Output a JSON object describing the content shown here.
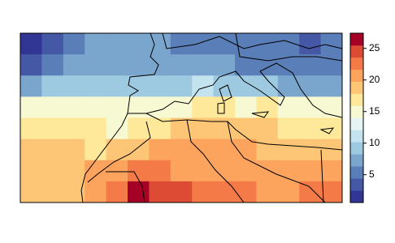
{
  "chart_data": {
    "type": "raster",
    "values": [
      [
        1.5,
        3.5,
        5,
        6.5,
        6.5,
        6.5,
        6.5,
        5,
        5,
        5,
        5,
        5,
        5,
        3.5,
        4.5
      ],
      [
        3.5,
        5,
        6.5,
        8,
        8,
        8,
        8,
        7,
        8,
        6.5,
        5,
        5,
        5,
        5,
        5
      ],
      [
        8,
        10,
        10,
        10,
        10,
        10,
        10,
        10,
        12,
        10,
        10,
        10,
        8,
        8,
        8
      ],
      [
        14,
        14,
        14,
        14,
        14,
        14,
        14,
        14,
        16,
        16,
        14,
        16,
        14,
        14,
        14
      ],
      [
        16,
        16,
        16,
        16,
        14,
        16,
        16,
        18,
        18,
        18,
        18,
        18,
        16,
        16,
        16
      ],
      [
        18,
        18,
        18,
        16,
        18,
        18,
        20,
        20,
        20,
        20,
        20,
        18,
        18,
        18,
        18
      ],
      [
        18,
        18,
        18,
        20,
        20,
        22,
        22,
        20,
        20,
        20,
        20,
        20,
        20,
        20,
        20
      ],
      [
        18,
        18,
        18,
        20,
        22,
        26,
        24,
        24,
        22,
        22,
        22,
        20,
        20,
        22,
        22
      ]
    ],
    "zlim": [
      0.6,
      27.4
    ],
    "zticks": [
      5,
      10,
      15,
      20,
      25
    ],
    "colors": [
      "#313695",
      "#4458a5",
      "#5a7eb8",
      "#7aa5cc",
      "#9ecae1",
      "#c3e3ee",
      "#e6f5f3",
      "#f7f9d2",
      "#fee89a",
      "#fdc677",
      "#fca35e",
      "#f47b48",
      "#de4b34",
      "#a50026"
    ]
  }
}
